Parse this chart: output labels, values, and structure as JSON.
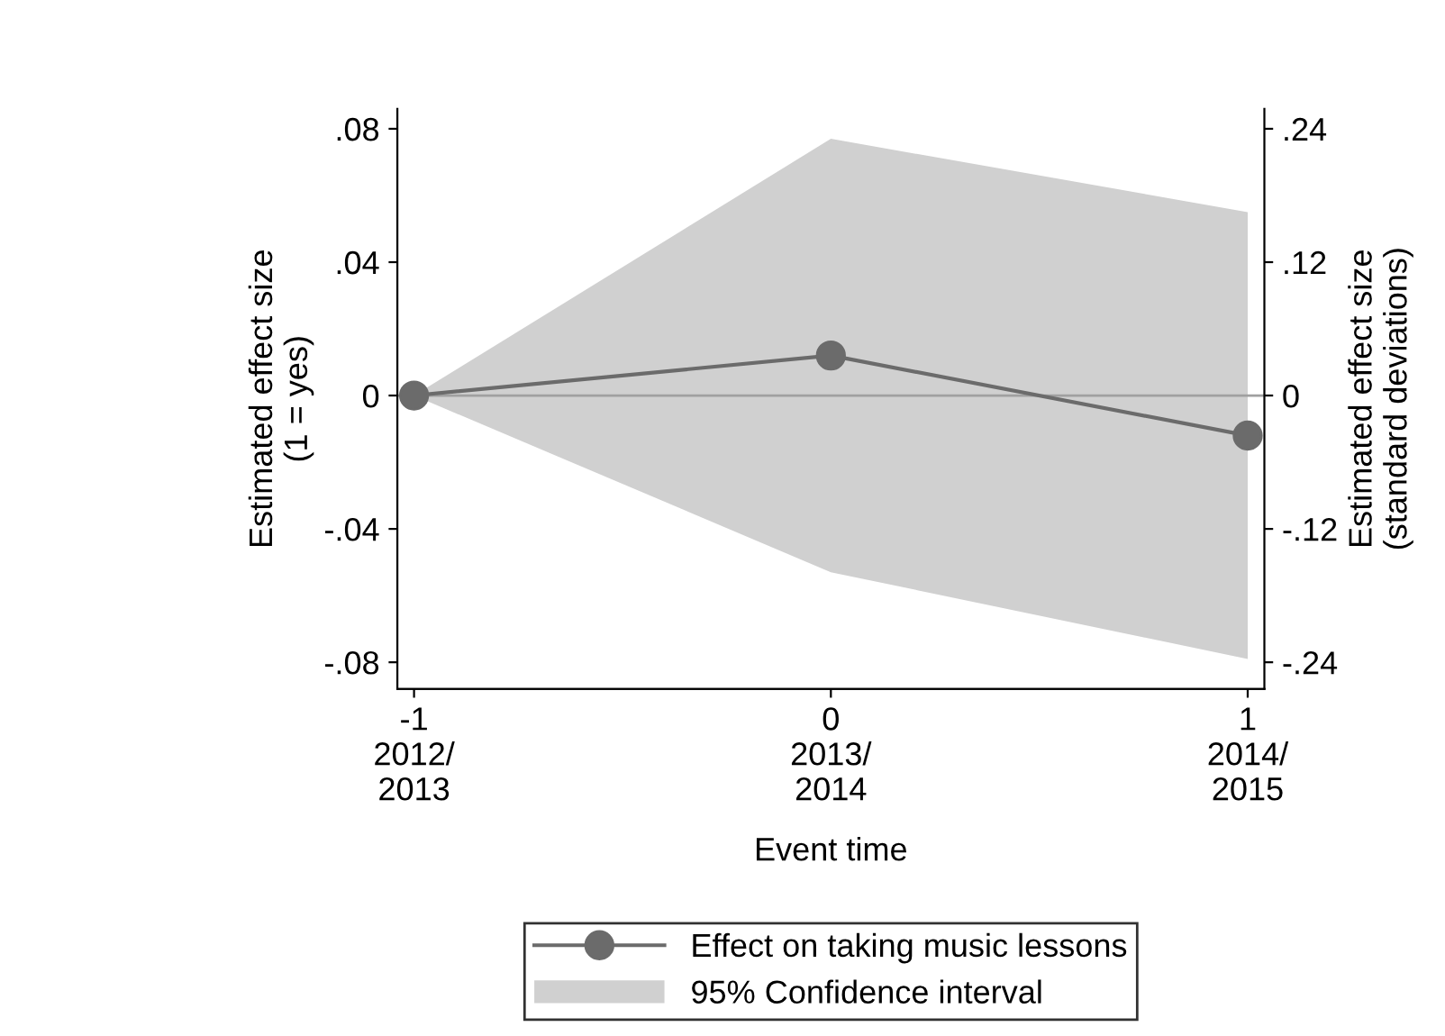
{
  "chart_data": {
    "type": "line",
    "xlabel": "Event time",
    "ylabel": "Estimated effect size\n(1 = yes)",
    "y2label": "Estimated effect size\n(standard deviations)",
    "categories": [
      "-1\n2012/\n2013",
      "0\n2013/\n2014",
      "1\n2014/\n2015"
    ],
    "series": [
      {
        "name": "Effect on taking music lessons",
        "color": "#6b6b6b",
        "values": [
          0,
          0.012,
          -0.012
        ]
      },
      {
        "name": "95% Confidence interval",
        "type": "area",
        "color": "#d0d0d0",
        "values": [
          null,
          null,
          null
        ],
        "lower": [
          0,
          -0.053,
          -0.079
        ],
        "upper": [
          0,
          0.077,
          0.055
        ]
      }
    ],
    "ylim": [
      -0.088,
      0.086
    ],
    "yticks": [
      {
        "value": -0.08,
        "label": "-.08"
      },
      {
        "value": -0.04,
        "label": "-.04"
      },
      0,
      {
        "value": 0.04,
        "label": ".04"
      },
      {
        "value": 0.08,
        "label": ".08"
      }
    ],
    "y2lim": [
      -0.264,
      0.258
    ],
    "y2ticks": [
      {
        "value": -0.24,
        "label": "-.24"
      },
      {
        "value": -0.12,
        "label": "-.12"
      },
      0,
      {
        "value": 0.12,
        "label": ".12"
      },
      {
        "value": 0.24,
        "label": ".24"
      }
    ],
    "ref_lines": [
      {
        "axis": "y",
        "value": 0,
        "label": null,
        "color": "#a0a0a0"
      }
    ],
    "marker": "circle",
    "line_style": "solid",
    "grid": false,
    "legend": "bottom"
  }
}
